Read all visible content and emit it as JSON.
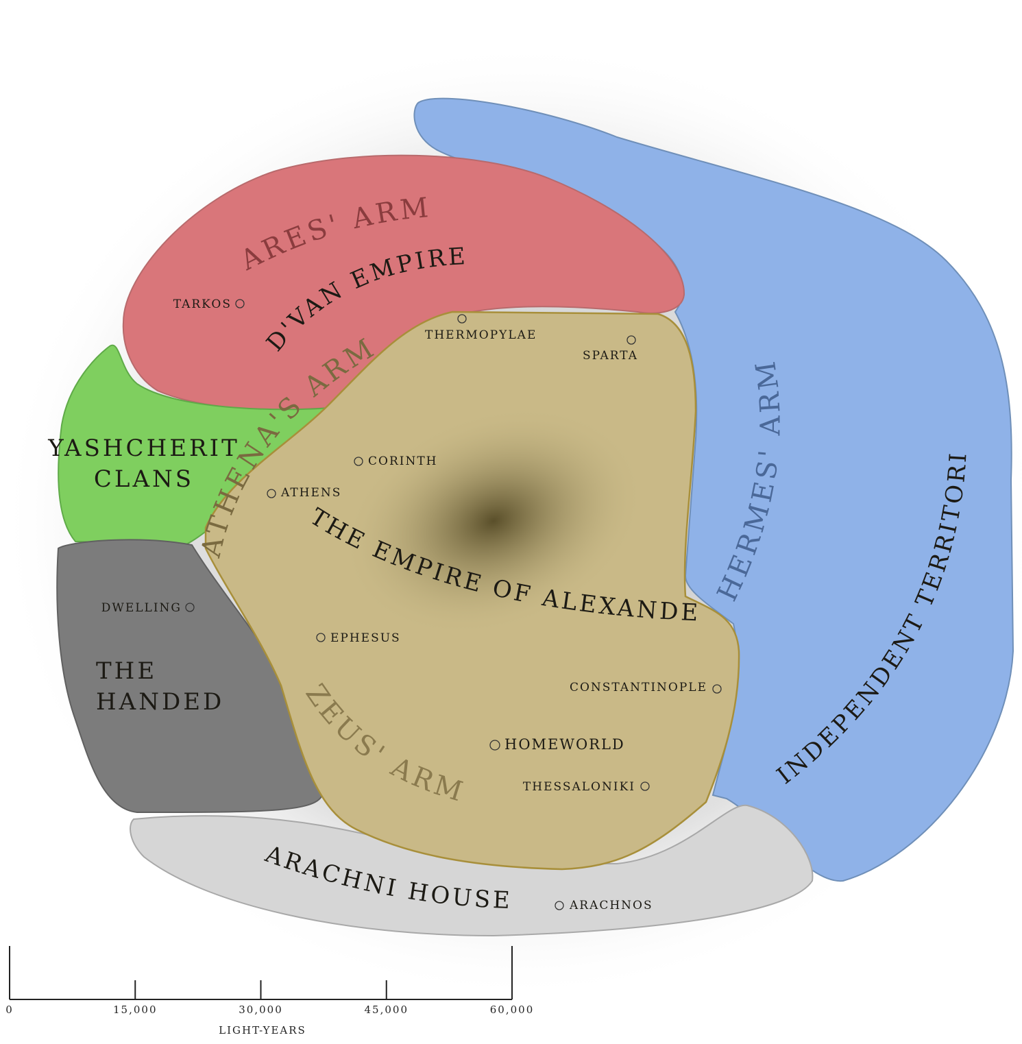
{
  "regions": [
    {
      "label_lines": [
        "D'VAN EMPIRE"
      ]
    },
    {
      "label_lines": [
        "YASHCHERIT",
        "CLANS"
      ]
    },
    {
      "label_lines": [
        "THE",
        "HANDED"
      ]
    },
    {
      "label_lines": [
        "THE EMPIRE OF ALEXANDER"
      ]
    },
    {
      "label_lines": [
        "INDEPENDENT TERRITORIES"
      ]
    },
    {
      "label_lines": [
        "ARACHNI HOUSES"
      ]
    }
  ],
  "arms": [
    "ARES' ARM",
    "ATHENA'S ARM",
    "ZEUS' ARM",
    "HERMES' ARM"
  ],
  "systems": [
    "TARKOS",
    "THERMOPYLAE",
    "SPARTA",
    "CORINTH",
    "ATHENS",
    "DWELLING",
    "EPHESUS",
    "CONSTANTINOPLE",
    "HOMEWORLD",
    "THESSALONIKI",
    "ARACHNOS"
  ],
  "scale": {
    "ticks": [
      0,
      {
        "value": 15000,
        "label": "15,000"
      },
      {
        "value": 30000,
        "label": "30,000"
      },
      {
        "value": 45000,
        "label": "45,000"
      },
      {
        "value": 60000,
        "label": "60,000"
      }
    ],
    "unit": "LIGHT-YEARS"
  }
}
